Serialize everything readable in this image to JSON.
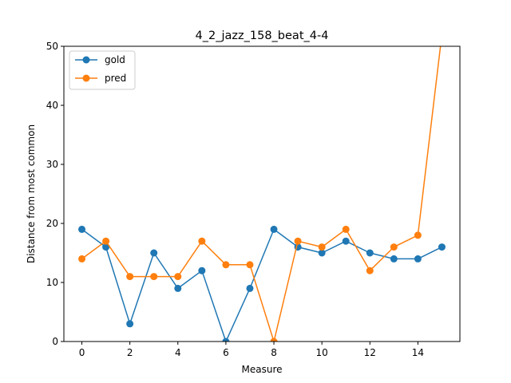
{
  "chart_data": {
    "type": "line",
    "title": "4_2_jazz_158_beat_4-4",
    "xlabel": "Measure",
    "ylabel": "Distance from most common",
    "xlim": [
      -0.75,
      15.75
    ],
    "ylim": [
      0,
      50
    ],
    "xticks": [
      0,
      2,
      4,
      6,
      8,
      10,
      12,
      14
    ],
    "yticks": [
      0,
      10,
      20,
      30,
      40,
      50
    ],
    "grid": false,
    "legend_position": "top-left",
    "series": [
      {
        "name": "gold",
        "color": "#1f77b4",
        "x": [
          0,
          1,
          2,
          3,
          4,
          5,
          6,
          7,
          8,
          9,
          10,
          11,
          12,
          13,
          14,
          15
        ],
        "y": [
          19,
          16,
          3,
          15,
          9,
          12,
          0,
          9,
          19,
          16,
          15,
          17,
          15,
          14,
          14,
          16
        ]
      },
      {
        "name": "pred",
        "color": "#ff7f0e",
        "x": [
          0,
          1,
          2,
          3,
          4,
          5,
          6,
          7,
          8,
          9,
          10,
          11,
          12,
          13,
          14,
          15
        ],
        "y": [
          14,
          17,
          11,
          11,
          11,
          17,
          13,
          13,
          0,
          17,
          16,
          19,
          12,
          16,
          18,
          52
        ]
      }
    ]
  }
}
